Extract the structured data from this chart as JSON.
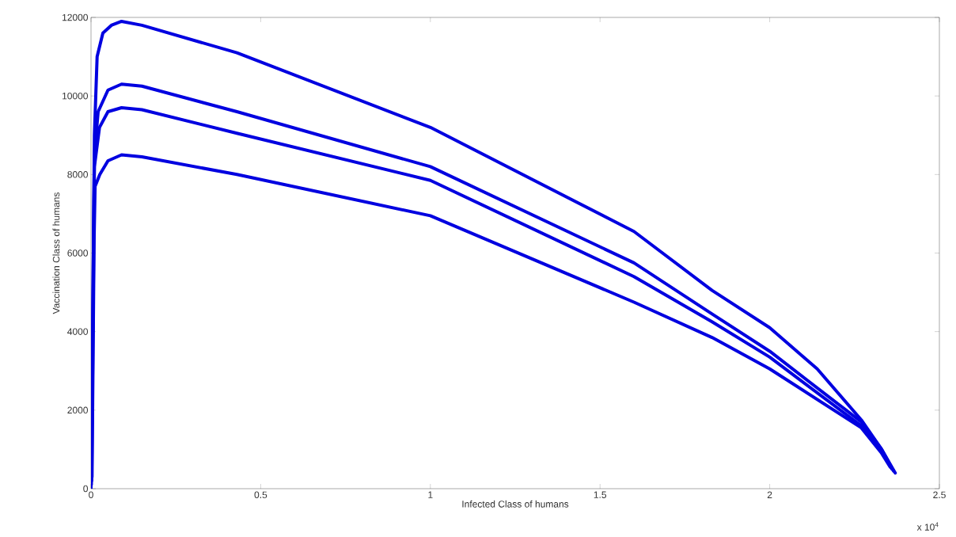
{
  "chart_data": {
    "type": "line",
    "xlabel": "Infected Class of humans",
    "ylabel": "Vaccination Class of humans",
    "annotations": [
      "x 10$^{4}$"
    ],
    "xlim": [
      0,
      2.5
    ],
    "xticks": [
      0,
      0.5,
      1,
      1.5,
      2,
      2.5
    ],
    "ylim": [
      0,
      12000
    ],
    "yticks": [
      0,
      2000,
      4000,
      6000,
      8000,
      10000,
      12000
    ],
    "series": [
      {
        "color": "#0000e0",
        "x": [
          0,
          0.004,
          0.007,
          0.01,
          0.018,
          0.035,
          0.06,
          0.09,
          0.15,
          0.43,
          1.0,
          1.6,
          1.83,
          2.0,
          2.14,
          2.27,
          2.33,
          2.37
        ],
        "values": [
          0,
          3000,
          6000,
          9000,
          11000,
          11600,
          11800,
          11900,
          11800,
          11100,
          9200,
          6550,
          5050,
          4100,
          3050,
          1750,
          1000,
          400
        ]
      },
      {
        "color": "#0000e0",
        "x": [
          0.001,
          0.004,
          0.007,
          0.01,
          0.021,
          0.05,
          0.09,
          0.15,
          0.43,
          1.0,
          1.6,
          1.83,
          2.0,
          2.27,
          2.33,
          2.365
        ],
        "values": [
          100,
          3100,
          6100,
          8500,
          9600,
          10150,
          10300,
          10250,
          9600,
          8200,
          5750,
          4450,
          3500,
          1700,
          1000,
          450
        ]
      },
      {
        "color": "#0000e0",
        "x": [
          0.002,
          0.005,
          0.008,
          0.01,
          0.025,
          0.05,
          0.09,
          0.15,
          0.43,
          1.0,
          1.6,
          1.83,
          2.0,
          2.27,
          2.33,
          2.36
        ],
        "values": [
          200,
          3200,
          6200,
          8200,
          9200,
          9600,
          9700,
          9650,
          9050,
          7850,
          5400,
          4250,
          3350,
          1600,
          950,
          500
        ]
      },
      {
        "color": "#0000e0",
        "x": [
          0.003,
          0.006,
          0.009,
          0.012,
          0.026,
          0.05,
          0.09,
          0.15,
          0.43,
          1.0,
          1.6,
          1.83,
          2.0,
          2.27,
          2.33,
          2.355
        ],
        "values": [
          300,
          3300,
          6300,
          7700,
          8000,
          8350,
          8500,
          8450,
          8000,
          6950,
          4750,
          3850,
          3050,
          1550,
          900,
          550
        ]
      }
    ]
  }
}
